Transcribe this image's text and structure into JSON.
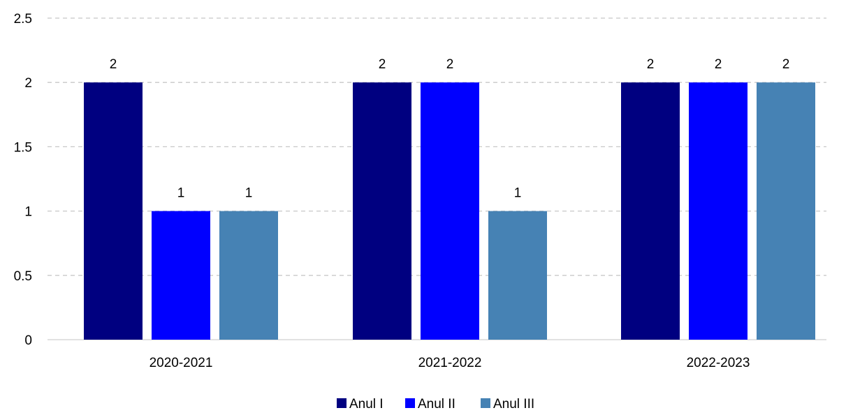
{
  "chart_data": {
    "type": "bar",
    "categories": [
      "2020-2021",
      "2021-2022",
      "2022-2023"
    ],
    "series": [
      {
        "name": "Anul I",
        "color": "#000080",
        "values": [
          2,
          2,
          2
        ]
      },
      {
        "name": "Anul II",
        "color": "#0000FF",
        "values": [
          1,
          2,
          2
        ]
      },
      {
        "name": "Anul III",
        "color": "#4682B4",
        "values": [
          1,
          1,
          2
        ]
      }
    ],
    "y_ticks": [
      "0",
      "0.5",
      "1",
      "1.5",
      "2",
      "2.5"
    ],
    "ylim": [
      0,
      2.5
    ],
    "grid": "dashed horizontal",
    "data_labels": [
      [
        "2",
        "2",
        "2"
      ],
      [
        "1",
        "2",
        "2"
      ],
      [
        "1",
        "1",
        "2"
      ]
    ],
    "legend_position": "bottom-center"
  }
}
